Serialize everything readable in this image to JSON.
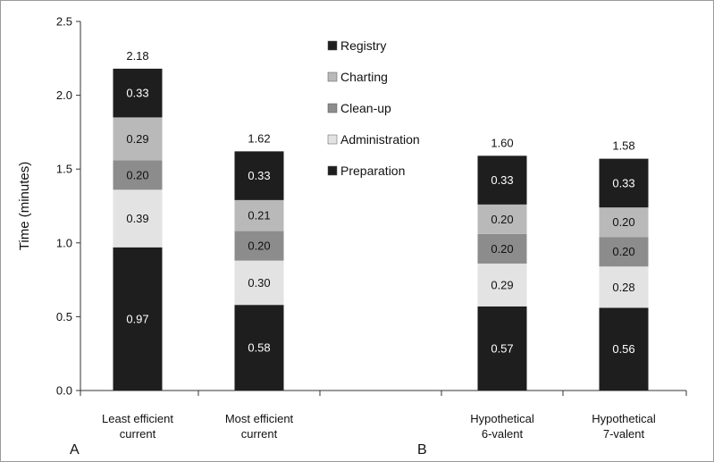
{
  "chart_data": {
    "type": "bar",
    "stacked": true,
    "ylabel": "Time (minutes)",
    "xlabel": "",
    "ylim": [
      0,
      2.5
    ],
    "yticks": [
      "0.0",
      "0.5",
      "1.0",
      "1.5",
      "2.0",
      "2.5"
    ],
    "grid": false,
    "legend_position": "top-center",
    "panel_labels": [
      "A",
      "B"
    ],
    "categories": [
      [
        "Least efficient",
        "current"
      ],
      [
        "Most efficient",
        "current"
      ],
      [
        "Hypothetical",
        "6-valent"
      ],
      [
        "Hypothetical",
        "7-valent"
      ]
    ],
    "totals": [
      "2.18",
      "1.62",
      "1.60",
      "1.58"
    ],
    "series": [
      {
        "name": "Preparation",
        "color": "#1e1e1e",
        "label_color": "#ffffff",
        "values": [
          0.97,
          0.58,
          0.57,
          0.56
        ],
        "labels": [
          "0.97",
          "0.58",
          "0.57",
          "0.56"
        ]
      },
      {
        "name": "Administration",
        "color": "#e3e3e3",
        "label_color": "#111111",
        "values": [
          0.39,
          0.3,
          0.29,
          0.28
        ],
        "labels": [
          "0.39",
          "0.30",
          "0.29",
          "0.28"
        ]
      },
      {
        "name": "Clean-up",
        "color": "#8c8c8c",
        "label_color": "#111111",
        "values": [
          0.2,
          0.2,
          0.2,
          0.2
        ],
        "labels": [
          "0.20",
          "0.20",
          "0.20",
          "0.20"
        ]
      },
      {
        "name": "Charting",
        "color": "#b9b9b9",
        "label_color": "#111111",
        "values": [
          0.29,
          0.21,
          0.2,
          0.2
        ],
        "labels": [
          "0.29",
          "0.21",
          "0.20",
          "0.20"
        ]
      },
      {
        "name": "Registry",
        "color": "#1e1e1e",
        "label_color": "#ffffff",
        "values": [
          0.33,
          0.33,
          0.33,
          0.33
        ],
        "labels": [
          "0.33",
          "0.33",
          "0.33",
          "0.33"
        ]
      }
    ],
    "legend_order": [
      "Registry",
      "Charting",
      "Clean-up",
      "Administration",
      "Preparation"
    ]
  }
}
